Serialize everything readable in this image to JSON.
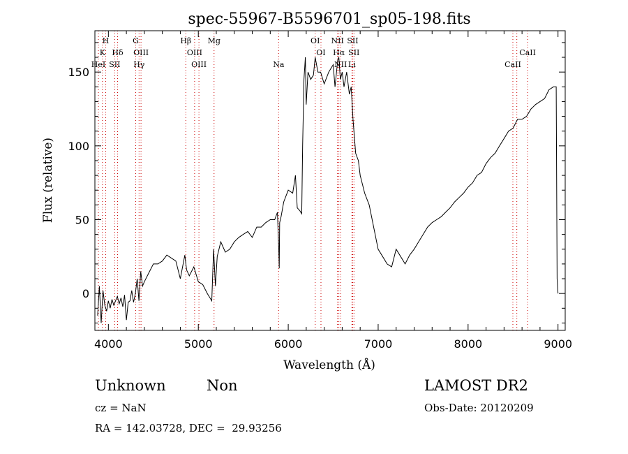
{
  "chart_data": {
    "type": "line",
    "title": "spec-55967-B5596701_sp05-198.fits",
    "xlabel": "Wavelength (Å)",
    "ylabel": "Flux (relative)",
    "xlim": [
      3850,
      9080
    ],
    "ylim": [
      -25,
      178
    ],
    "xticks": [
      4000,
      5000,
      6000,
      7000,
      8000,
      9000
    ],
    "yticks": [
      0,
      50,
      100,
      150
    ],
    "grid": false,
    "series": [
      {
        "color": "#000000",
        "x": [
          3880,
          3900,
          3920,
          3940,
          3960,
          3980,
          4000,
          4020,
          4040,
          4060,
          4080,
          4100,
          4120,
          4140,
          4160,
          4180,
          4200,
          4220,
          4240,
          4260,
          4280,
          4300,
          4320,
          4340,
          4360,
          4380,
          4400,
          4450,
          4500,
          4550,
          4600,
          4650,
          4700,
          4750,
          4800,
          4850,
          4870,
          4900,
          4950,
          5000,
          5050,
          5100,
          5150,
          5170,
          5190,
          5210,
          5250,
          5300,
          5350,
          5400,
          5450,
          5500,
          5550,
          5600,
          5650,
          5700,
          5750,
          5800,
          5850,
          5880,
          5895,
          5900,
          5905,
          5920,
          5950,
          6000,
          6050,
          6080,
          6100,
          6130,
          6150,
          6160,
          6170,
          6175,
          6190,
          6200,
          6220,
          6250,
          6280,
          6300,
          6330,
          6360,
          6400,
          6450,
          6500,
          6520,
          6550,
          6563,
          6580,
          6600,
          6620,
          6650,
          6680,
          6700,
          6720,
          6750,
          6780,
          6800,
          6850,
          6900,
          6950,
          7000,
          7050,
          7100,
          7150,
          7200,
          7250,
          7300,
          7350,
          7400,
          7450,
          7500,
          7550,
          7600,
          7650,
          7700,
          7750,
          7800,
          7850,
          7900,
          7950,
          8000,
          8050,
          8100,
          8150,
          8200,
          8250,
          8300,
          8350,
          8400,
          8450,
          8500,
          8550,
          8600,
          8650,
          8700,
          8750,
          8800,
          8850,
          8900,
          8950,
          8980,
          8990,
          9000
        ],
        "y": [
          -15,
          5,
          -20,
          2,
          -8,
          -12,
          -5,
          -10,
          -4,
          -8,
          -5,
          -2,
          -7,
          -3,
          -9,
          -1,
          -18,
          -6,
          -5,
          2,
          -6,
          0,
          10,
          -5,
          15,
          5,
          8,
          14,
          20,
          20,
          22,
          26,
          24,
          22,
          10,
          26,
          16,
          12,
          18,
          8,
          6,
          0,
          -5,
          30,
          5,
          25,
          35,
          28,
          30,
          35,
          38,
          40,
          42,
          38,
          45,
          45,
          48,
          50,
          50,
          55,
          30,
          17,
          48,
          52,
          62,
          70,
          68,
          80,
          58,
          56,
          54,
          100,
          130,
          145,
          160,
          128,
          150,
          145,
          148,
          160,
          150,
          150,
          142,
          150,
          155,
          140,
          158,
          160,
          145,
          150,
          140,
          150,
          135,
          140,
          118,
          95,
          90,
          80,
          68,
          60,
          45,
          30,
          25,
          20,
          18,
          30,
          25,
          20,
          26,
          30,
          35,
          40,
          45,
          48,
          50,
          52,
          55,
          58,
          62,
          65,
          68,
          72,
          75,
          80,
          82,
          88,
          92,
          95,
          100,
          105,
          110,
          112,
          118,
          118,
          120,
          125,
          128,
          130,
          132,
          138,
          140,
          140,
          10,
          0
        ]
      }
    ],
    "line_ids": {
      "labels": [
        {
          "text": "H",
          "x": 3970,
          "row": 1
        },
        {
          "text": "K",
          "x": 3934,
          "row": 2
        },
        {
          "text": "HeI",
          "x": 3889,
          "row": 3
        },
        {
          "text": "Hδ",
          "x": 4102,
          "row": 2
        },
        {
          "text": "SII",
          "x": 4070,
          "row": 3
        },
        {
          "text": "G",
          "x": 4304,
          "row": 1
        },
        {
          "text": "OIII",
          "x": 4363,
          "row": 2
        },
        {
          "text": "Hγ",
          "x": 4341,
          "row": 3
        },
        {
          "text": "Hβ",
          "x": 4861,
          "row": 1
        },
        {
          "text": "OIII",
          "x": 4959,
          "row": 2
        },
        {
          "text": "OIII",
          "x": 5007,
          "row": 3
        },
        {
          "text": "Mg",
          "x": 5175,
          "row": 1
        },
        {
          "text": "Na",
          "x": 5893,
          "row": 3
        },
        {
          "text": "OI",
          "x": 6300,
          "row": 1
        },
        {
          "text": "OI",
          "x": 6364,
          "row": 2
        },
        {
          "text": "NII",
          "x": 6548,
          "row": 1
        },
        {
          "text": "SII",
          "x": 6717,
          "row": 1
        },
        {
          "text": "Hα",
          "x": 6563,
          "row": 2
        },
        {
          "text": "SII",
          "x": 6731,
          "row": 2
        },
        {
          "text": "NII",
          "x": 6583,
          "row": 3
        },
        {
          "text": "Li",
          "x": 6708,
          "row": 3
        },
        {
          "text": "CaII",
          "x": 8662,
          "row": 2
        },
        {
          "text": "CaII",
          "x": 8498,
          "row": 3
        }
      ],
      "wavelengths": [
        3889,
        3934,
        3970,
        4070,
        4102,
        4304,
        4341,
        4363,
        4861,
        4959,
        5007,
        5175,
        5893,
        6300,
        6364,
        6548,
        6563,
        6583,
        6708,
        6717,
        6731,
        8498,
        8542,
        8662
      ],
      "color": "#cc0000"
    }
  },
  "info": {
    "class": "Unknown",
    "subclass": "Non",
    "survey": "LAMOST DR2",
    "cz": "cz = NaN",
    "obs_date": "Obs-Date: 20120209",
    "radec": "RA = 142.03728, DEC =  29.93256"
  }
}
